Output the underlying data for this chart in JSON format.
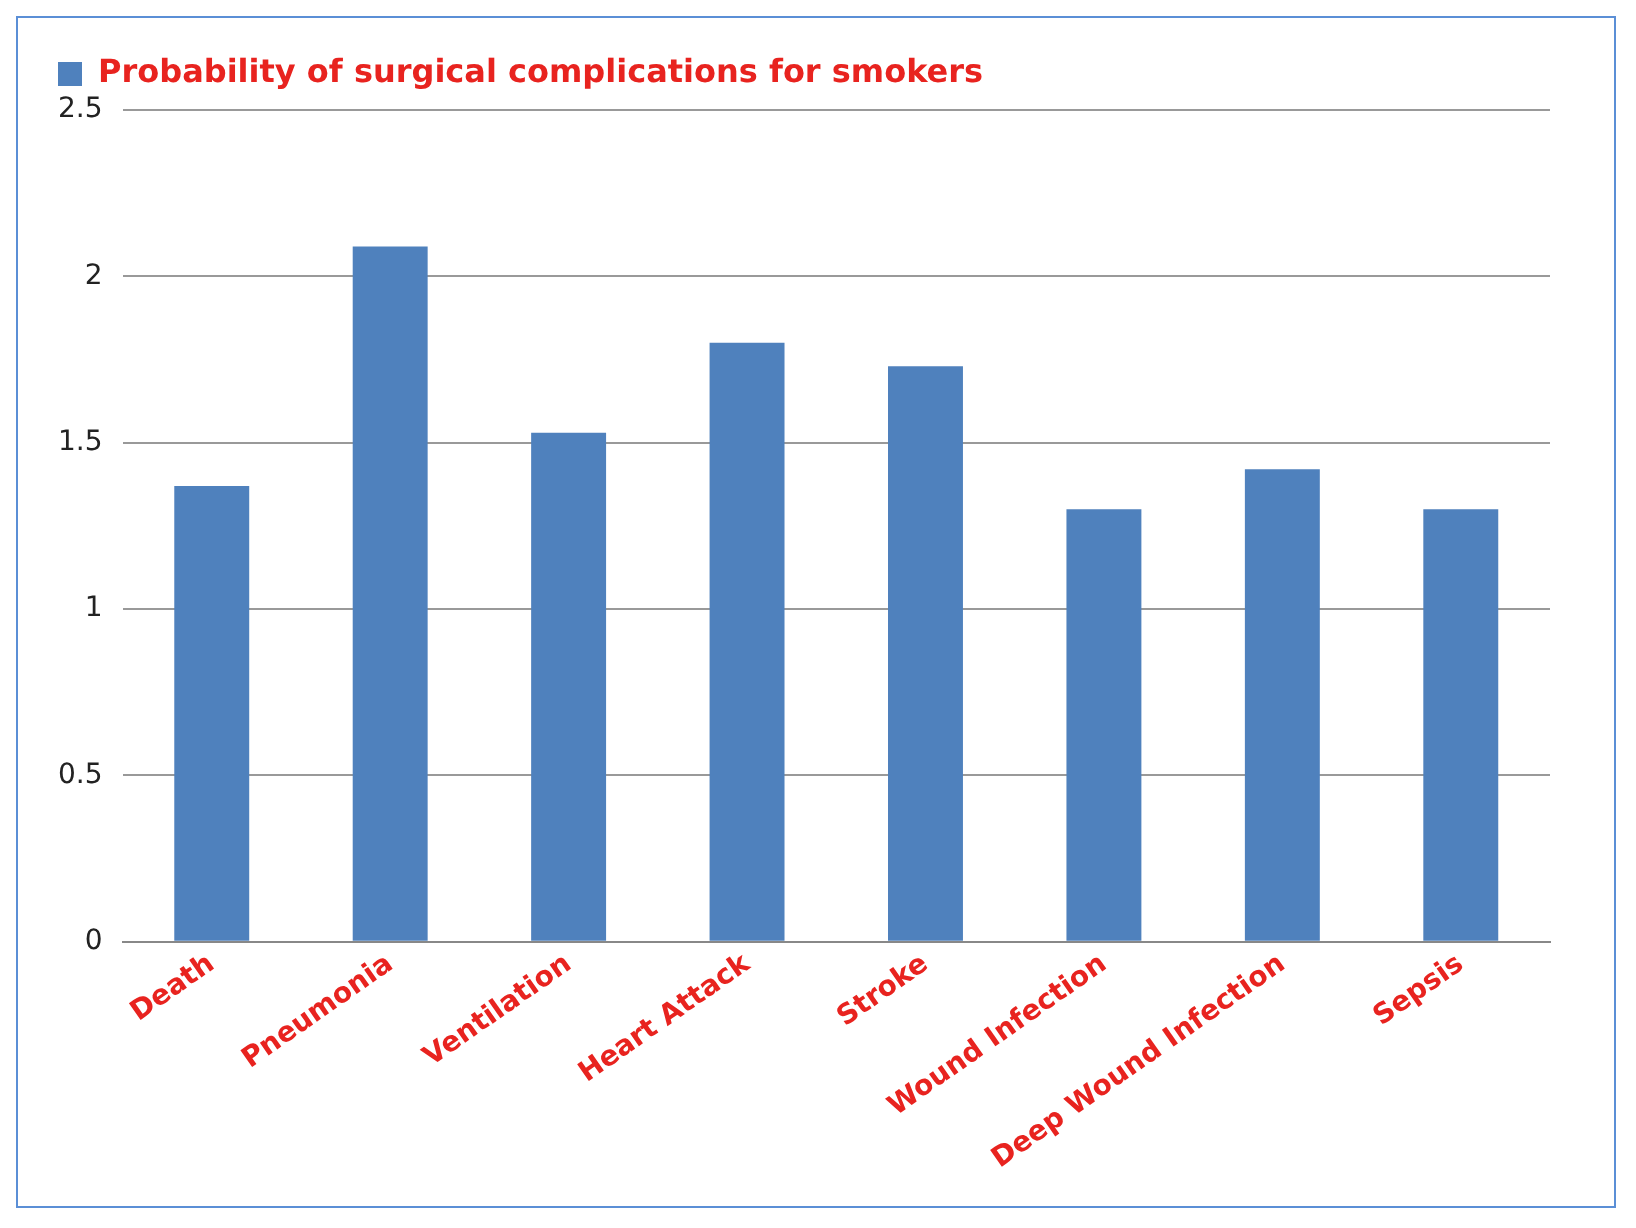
{
  "chart_data": {
    "type": "bar",
    "categories": [
      "Death",
      "Pneumonia",
      "Ventilation",
      "Heart Attack",
      "Stroke",
      "Wound Infection",
      "Deep Wound Infection",
      "Sepsis"
    ],
    "series": [
      {
        "name": "Probability of surgical complications for smokers",
        "color": "#4f81bd",
        "values": [
          1.37,
          2.09,
          1.53,
          1.8,
          1.73,
          1.3,
          1.42,
          1.3
        ]
      }
    ],
    "ylim": [
      0,
      2.5
    ],
    "yticks": [
      0,
      0.5,
      1,
      1.5,
      2,
      2.5
    ],
    "grid": "y",
    "legend": "top left"
  }
}
